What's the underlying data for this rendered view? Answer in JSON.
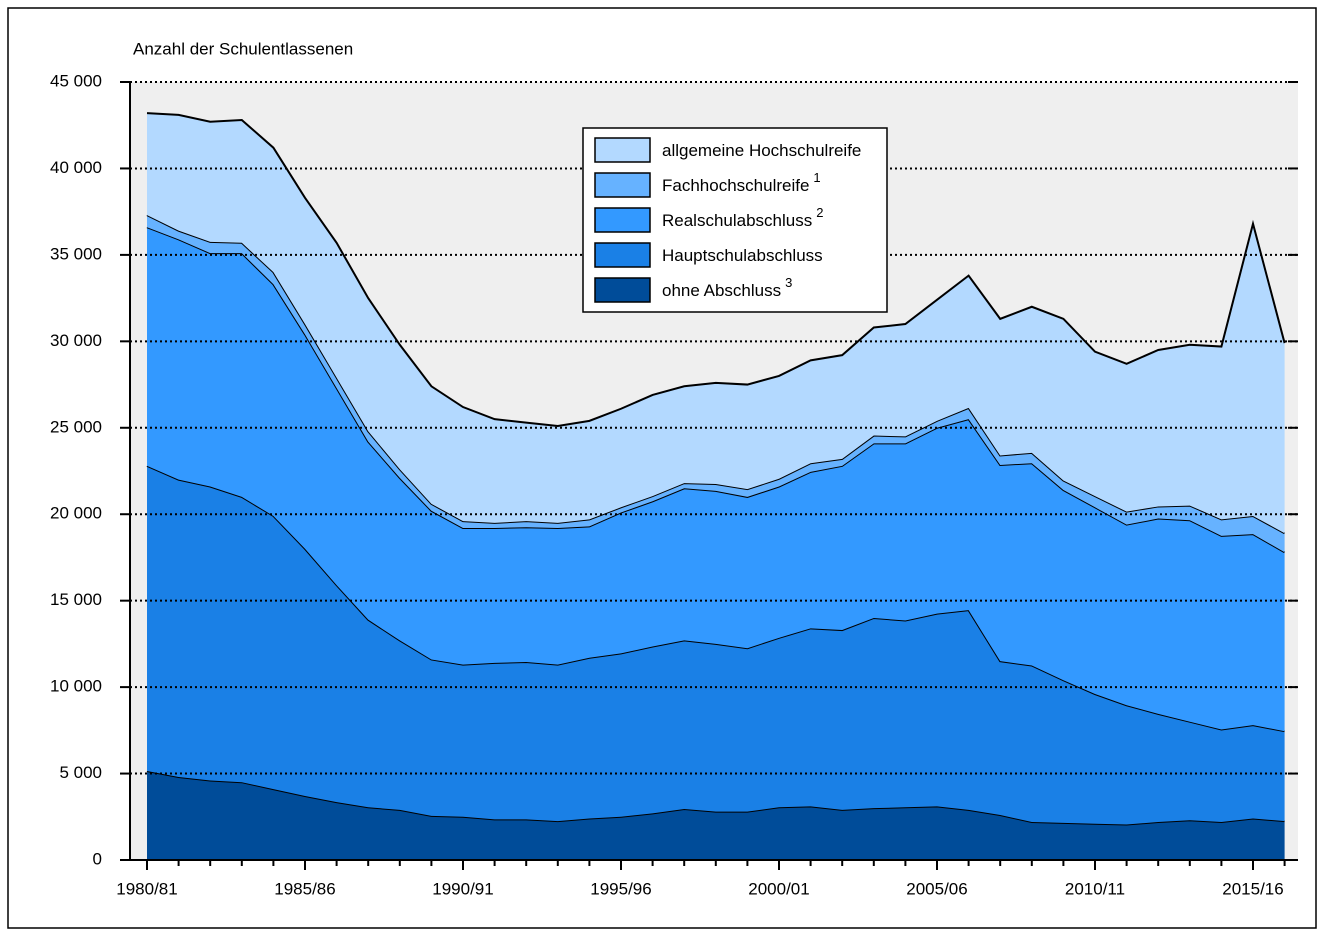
{
  "chart_data": {
    "type": "stacked-area",
    "ylabel": "Anzahl der Schulentlassenen",
    "categories": [
      "1980/81",
      null,
      null,
      null,
      null,
      "1985/86",
      null,
      null,
      null,
      null,
      "1990/91",
      null,
      null,
      null,
      null,
      "1995/96",
      null,
      null,
      null,
      null,
      "2000/01",
      null,
      null,
      null,
      null,
      "2005/06",
      null,
      null,
      null,
      null,
      "2010/11",
      null,
      null,
      null,
      null,
      "2015/16",
      null
    ],
    "series": [
      {
        "name": "allgemeine Hochschulreife",
        "color": "#b3d9ff",
        "values": [
          5900,
          6700,
          6950,
          7100,
          7200,
          7300,
          7800,
          7700,
          7200,
          6800,
          6600,
          6000,
          5700,
          5600,
          5700,
          5700,
          5850,
          5600,
          5850,
          6050,
          5950,
          5950,
          6000,
          6250,
          6500,
          7000,
          7650,
          7900,
          8450,
          9350,
          8350,
          8550,
          9050,
          9300,
          10000,
          16900,
          11000
        ]
      },
      {
        "name": "Fachhochschulreife",
        "note": "1",
        "color": "#66b2ff",
        "values": [
          700,
          500,
          650,
          600,
          700,
          600,
          600,
          600,
          500,
          400,
          400,
          300,
          350,
          300,
          400,
          300,
          300,
          300,
          400,
          450,
          450,
          500,
          400,
          450,
          400,
          400,
          650,
          550,
          600,
          550,
          650,
          750,
          700,
          850,
          950,
          1050,
          1100
        ]
      },
      {
        "name": "Realschulabschluss",
        "note": "2",
        "color": "#3399ff",
        "values": [
          13800,
          13900,
          13500,
          14100,
          13400,
          12400,
          11400,
          10300,
          9400,
          8600,
          7900,
          7800,
          7800,
          7900,
          7600,
          8150,
          8400,
          8800,
          8850,
          8750,
          8750,
          9050,
          9500,
          10100,
          10250,
          10750,
          11050,
          11350,
          11700,
          11000,
          10800,
          10450,
          11300,
          11650,
          11200,
          11050,
          10350
        ]
      },
      {
        "name": "Hauptschulabschluss",
        "color": "#1a80e6",
        "values": [
          17650,
          17200,
          17000,
          16500,
          15800,
          14300,
          12550,
          10850,
          9800,
          9050,
          8800,
          9050,
          9100,
          9050,
          9300,
          9450,
          9650,
          9750,
          9700,
          9450,
          9800,
          10300,
          10400,
          11000,
          10800,
          11150,
          11550,
          8900,
          9050,
          8250,
          7500,
          6900,
          6250,
          5700,
          5350,
          5400,
          5200
        ]
      },
      {
        "name": "ohne Abschluss",
        "note": "3",
        "color": "#004c99",
        "values": [
          5150,
          4800,
          4600,
          4500,
          4100,
          3700,
          3350,
          3050,
          2900,
          2550,
          2500,
          2350,
          2350,
          2250,
          2400,
          2500,
          2700,
          2950,
          2800,
          2800,
          3050,
          3100,
          2900,
          3000,
          3050,
          3100,
          2900,
          2600,
          2200,
          2150,
          2100,
          2050,
          2200,
          2300,
          2200,
          2400,
          2250
        ]
      }
    ],
    "ylim": [
      0,
      45000
    ],
    "yticks": [
      0,
      {
        "value": 5000,
        "label": "5 000"
      },
      {
        "value": 10000,
        "label": "10 000"
      },
      {
        "value": 15000,
        "label": "15 000"
      },
      {
        "value": 20000,
        "label": "20 000"
      },
      {
        "value": 25000,
        "label": "25 000"
      },
      {
        "value": 30000,
        "label": "30 000"
      },
      {
        "value": 35000,
        "label": "35 000"
      },
      {
        "value": 40000,
        "label": "40 000"
      },
      {
        "value": 45000,
        "label": "45 000"
      }
    ],
    "grid": true,
    "legend": "top-center"
  }
}
